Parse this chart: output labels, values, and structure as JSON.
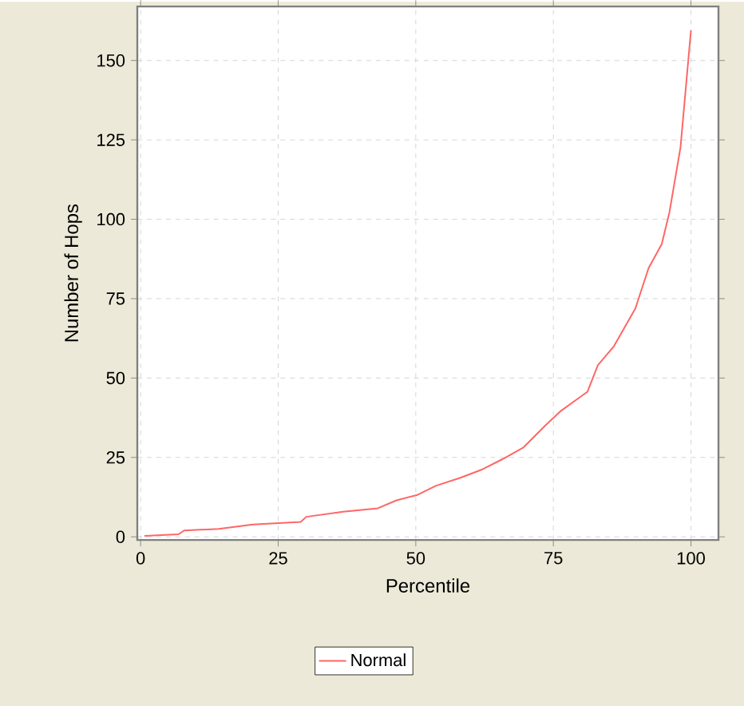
{
  "chart_data": {
    "type": "line",
    "xlabel": "Percentile",
    "ylabel": "Number of Hops",
    "xlim": [
      -0.6,
      105
    ],
    "ylim": [
      -1,
      167
    ],
    "xticks": [
      0,
      25,
      50,
      75,
      100
    ],
    "yticks": [
      0,
      25,
      50,
      75,
      100,
      125,
      150
    ],
    "grid": true,
    "legend": "bottom",
    "marker": "none",
    "line_style": "solid",
    "series": [
      {
        "name": "Normal",
        "color": "#ff6666",
        "x": [
          0.7,
          6.9,
          7.9,
          14.2,
          20.4,
          29.1,
          30.1,
          36.8,
          43.1,
          46.5,
          50.3,
          53.7,
          58.1,
          61.9,
          65.8,
          69.6,
          73.5,
          76.4,
          81.2,
          83.1,
          86,
          89.9,
          92.3,
          94.7,
          96.1,
          98.1,
          100
        ],
        "values": [
          0.3,
          0.8,
          2.0,
          2.5,
          3.9,
          4.7,
          6.3,
          7.9,
          9.0,
          11.5,
          13.2,
          16.1,
          18.6,
          21.1,
          24.5,
          28.2,
          35,
          39.7,
          45.7,
          54.1,
          60,
          71.9,
          84.6,
          92.2,
          102.3,
          122.6,
          159.5
        ]
      }
    ]
  }
}
